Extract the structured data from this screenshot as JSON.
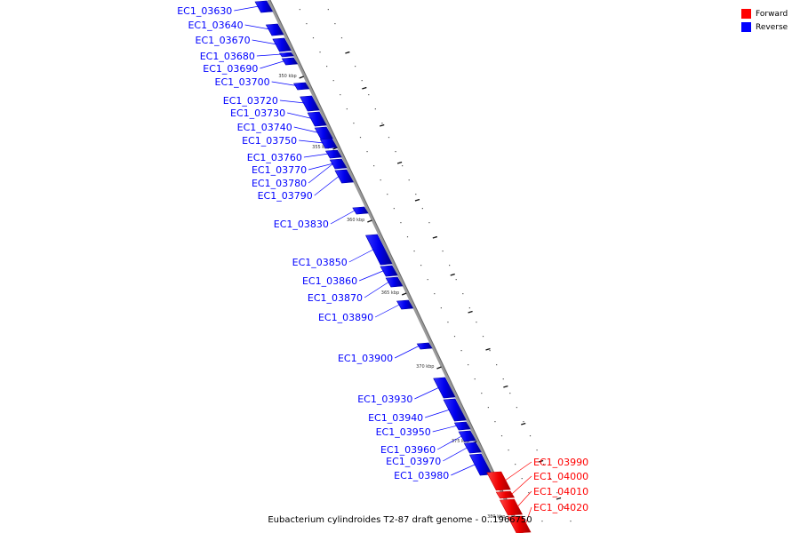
{
  "title": "Eubacterium cylindroides T2-87 draft genome - 0..1966750",
  "legend": [
    {
      "label": "Forward",
      "color": "#ff0000"
    },
    {
      "label": "Reverse",
      "color": "#0000ff"
    }
  ],
  "colors": {
    "forward": "#ff0000",
    "reverse": "#0000ff",
    "backbone": "#888888"
  },
  "ticks": [
    "350 kbp",
    "355 kbp",
    "360 kbp",
    "365 kbp",
    "370 kbp",
    "375 kbp",
    "380 kbp"
  ],
  "genes": [
    {
      "label": "EC1_03630",
      "strand": "reverse"
    },
    {
      "label": "EC1_03640",
      "strand": "reverse"
    },
    {
      "label": "EC1_03670",
      "strand": "reverse"
    },
    {
      "label": "EC1_03680",
      "strand": "reverse"
    },
    {
      "label": "EC1_03690",
      "strand": "reverse"
    },
    {
      "label": "EC1_03700",
      "strand": "reverse"
    },
    {
      "label": "EC1_03720",
      "strand": "reverse"
    },
    {
      "label": "EC1_03730",
      "strand": "reverse"
    },
    {
      "label": "EC1_03740",
      "strand": "reverse"
    },
    {
      "label": "EC1_03750",
      "strand": "reverse"
    },
    {
      "label": "EC1_03760",
      "strand": "reverse"
    },
    {
      "label": "EC1_03770",
      "strand": "reverse"
    },
    {
      "label": "EC1_03780",
      "strand": "reverse"
    },
    {
      "label": "EC1_03790",
      "strand": "reverse"
    },
    {
      "label": "EC1_03830",
      "strand": "reverse"
    },
    {
      "label": "EC1_03850",
      "strand": "reverse"
    },
    {
      "label": "EC1_03860",
      "strand": "reverse"
    },
    {
      "label": "EC1_03870",
      "strand": "reverse"
    },
    {
      "label": "EC1_03890",
      "strand": "reverse"
    },
    {
      "label": "EC1_03900",
      "strand": "reverse"
    },
    {
      "label": "EC1_03930",
      "strand": "reverse"
    },
    {
      "label": "EC1_03940",
      "strand": "reverse"
    },
    {
      "label": "EC1_03950",
      "strand": "reverse"
    },
    {
      "label": "EC1_03960",
      "strand": "reverse"
    },
    {
      "label": "EC1_03970",
      "strand": "reverse"
    },
    {
      "label": "EC1_03980",
      "strand": "reverse"
    },
    {
      "label": "EC1_03990",
      "strand": "forward"
    },
    {
      "label": "EC1_04000",
      "strand": "forward"
    },
    {
      "label": "EC1_04010",
      "strand": "forward"
    },
    {
      "label": "EC1_04020",
      "strand": "forward"
    }
  ]
}
